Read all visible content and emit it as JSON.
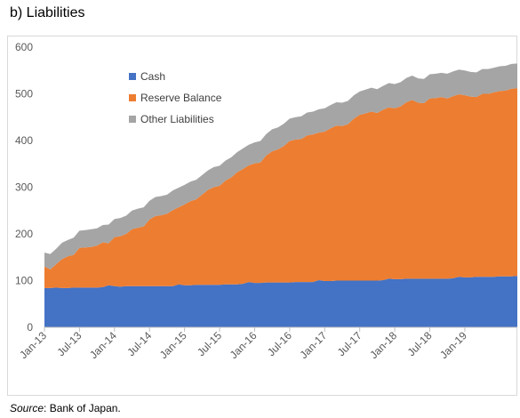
{
  "panel_title": "b) Liabilities",
  "source": {
    "label": "Source",
    "text": ": Bank of Japan."
  },
  "chart_data": {
    "type": "area",
    "stacked": true,
    "ylim": [
      0,
      600
    ],
    "y_ticks": [
      0,
      100,
      200,
      300,
      400,
      500,
      600
    ],
    "x_tick_labels": [
      "Jan-13",
      "Jul-13",
      "Jan-14",
      "Jul-14",
      "Jan-15",
      "Jul-15",
      "Jan-16",
      "Jul-16",
      "Jan-17",
      "Jul-17",
      "Jan-18",
      "Jul-18",
      "Jan-19"
    ],
    "x": [
      "Jan-13",
      "Feb-13",
      "Mar-13",
      "Apr-13",
      "May-13",
      "Jun-13",
      "Jul-13",
      "Aug-13",
      "Sep-13",
      "Oct-13",
      "Nov-13",
      "Dec-13",
      "Jan-14",
      "Feb-14",
      "Mar-14",
      "Apr-14",
      "May-14",
      "Jun-14",
      "Jul-14",
      "Aug-14",
      "Sep-14",
      "Oct-14",
      "Nov-14",
      "Dec-14",
      "Jan-15",
      "Feb-15",
      "Mar-15",
      "Apr-15",
      "May-15",
      "Jun-15",
      "Jul-15",
      "Aug-15",
      "Sep-15",
      "Oct-15",
      "Nov-15",
      "Dec-15",
      "Jan-16",
      "Feb-16",
      "Mar-16",
      "Apr-16",
      "May-16",
      "Jun-16",
      "Jul-16",
      "Aug-16",
      "Sep-16",
      "Oct-16",
      "Nov-16",
      "Dec-16",
      "Jan-17",
      "Feb-17",
      "Mar-17",
      "Apr-17",
      "May-17",
      "Jun-17",
      "Jul-17",
      "Aug-17",
      "Sep-17",
      "Oct-17",
      "Nov-17",
      "Dec-17",
      "Jan-18",
      "Feb-18",
      "Mar-18",
      "Apr-18",
      "May-18",
      "Jun-18",
      "Jul-18",
      "Aug-18",
      "Sep-18",
      "Oct-18",
      "Nov-18",
      "Dec-18",
      "Jan-19",
      "Feb-19",
      "Mar-19",
      "Apr-19",
      "May-19",
      "Jun-19",
      "Jul-19",
      "Aug-19",
      "Sep-19",
      "Oct-19"
    ],
    "series": [
      {
        "name": "Cash",
        "color": "#4472c4",
        "values": [
          84,
          84,
          85,
          84,
          84,
          85,
          85,
          85,
          85,
          85,
          86,
          90,
          88,
          87,
          88,
          88,
          88,
          88,
          88,
          88,
          88,
          88,
          88,
          92,
          90,
          90,
          91,
          91,
          91,
          91,
          91,
          92,
          92,
          92,
          93,
          97,
          95,
          95,
          96,
          96,
          96,
          96,
          96,
          97,
          97,
          97,
          97,
          101,
          99,
          99,
          100,
          100,
          100,
          100,
          100,
          100,
          100,
          100,
          101,
          104,
          103,
          103,
          104,
          104,
          104,
          104,
          104,
          104,
          104,
          104,
          105,
          108,
          107,
          107,
          108,
          108,
          108,
          108,
          109,
          109,
          109,
          110
        ]
      },
      {
        "name": "Reserve Balance",
        "color": "#ed7d31",
        "values": [
          46,
          40,
          50,
          62,
          68,
          70,
          85,
          86,
          87,
          90,
          96,
          90,
          105,
          108,
          112,
          122,
          125,
          128,
          143,
          150,
          152,
          155,
          163,
          165,
          173,
          180,
          183,
          193,
          203,
          209,
          212,
          222,
          229,
          240,
          246,
          250,
          256,
          258,
          272,
          281,
          285,
          292,
          303,
          305,
          306,
          314,
          316,
          316,
          320,
          327,
          332,
          331,
          335,
          347,
          355,
          358,
          362,
          359,
          365,
          367,
          366,
          370,
          378,
          383,
          377,
          376,
          386,
          387,
          389,
          386,
          390,
          391,
          390,
          387,
          385,
          392,
          392,
          395,
          397,
          398,
          402,
          402
        ]
      },
      {
        "name": "Other Liabilities",
        "color": "#a5a5a5",
        "values": [
          30,
          33,
          33,
          35,
          35,
          37,
          37,
          37,
          38,
          37,
          37,
          40,
          39,
          39,
          39,
          40,
          41,
          41,
          40,
          41,
          41,
          41,
          42,
          42,
          42,
          42,
          42,
          42,
          42,
          43,
          43,
          43,
          43,
          43,
          44,
          44,
          45,
          46,
          46,
          47,
          47,
          48,
          48,
          48,
          49,
          49,
          49,
          50,
          50,
          50,
          50,
          50,
          50,
          50,
          50,
          51,
          51,
          51,
          51,
          52,
          52,
          52,
          52,
          52,
          52,
          52,
          52,
          52,
          52,
          53,
          53,
          53,
          53,
          53,
          53,
          53,
          53,
          53,
          53,
          53,
          53,
          53
        ]
      }
    ],
    "legend_position": "top-left inside plot",
    "grid": false
  }
}
